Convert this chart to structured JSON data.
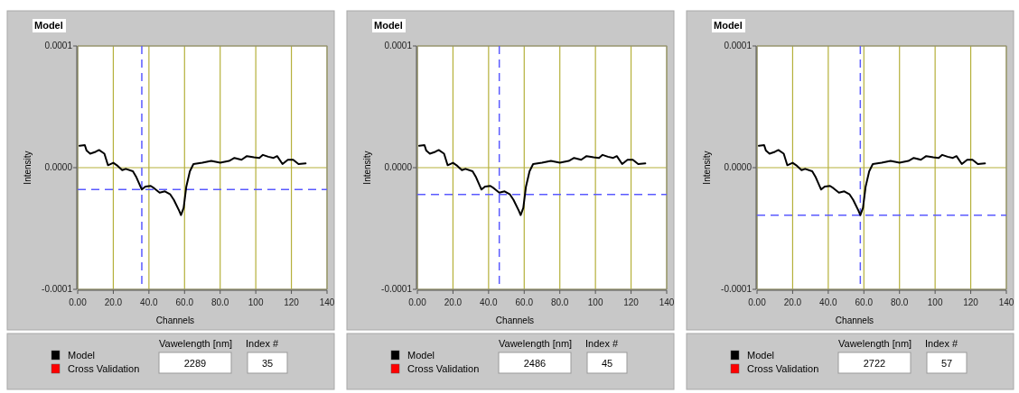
{
  "chart_data": [
    {
      "type": "line",
      "title": "Model",
      "xlabel": "Channels",
      "ylabel": "Intensity",
      "xlim": [
        0,
        140
      ],
      "ylim": [
        -0.0001,
        0.0001
      ],
      "xticks": [
        {
          "value": 0,
          "label": "0.00"
        },
        {
          "value": 20,
          "label": "20.0"
        },
        {
          "value": 40,
          "label": "40.0"
        },
        {
          "value": 60,
          "label": "60.0"
        },
        {
          "value": 80,
          "label": "80.0"
        },
        100,
        120,
        140
      ],
      "yticks": [
        {
          "value": -0.0001,
          "label": "-0.0001"
        },
        {
          "value": 0,
          "label": "0.0000"
        },
        {
          "value": 0.0001,
          "label": "0.0001"
        }
      ],
      "grid": true,
      "legend": "bottom left",
      "line_style": "solid",
      "x": [
        1,
        4,
        5,
        7,
        10,
        12,
        15,
        17,
        20,
        22,
        25,
        27,
        31,
        33,
        36,
        38,
        41,
        43,
        46,
        49,
        52,
        54,
        57,
        58,
        59.5,
        61,
        63,
        65,
        70,
        75,
        80,
        85,
        88,
        92,
        95,
        99,
        102,
        104,
        107,
        110,
        112,
        115,
        118,
        121,
        124,
        128
      ],
      "series": [
        {
          "name": "Model",
          "color": "#000000",
          "values": [
            1.8e-05,
            1.85e-05,
            1.4e-05,
            1.15e-05,
            1.3e-05,
            1.45e-05,
            1.15e-05,
            2e-06,
            4e-06,
            2e-06,
            -2e-06,
            -1e-06,
            -3e-06,
            -8e-06,
            -1.8e-05,
            -1.55e-05,
            -1.5e-05,
            -1.7e-05,
            -2.05e-05,
            -1.95e-05,
            -2.2e-05,
            -2.65e-05,
            -3.55e-05,
            -3.9e-05,
            -3.3e-05,
            -1.55e-05,
            -3e-06,
            3e-06,
            4e-06,
            5.5e-06,
            4e-06,
            5.5e-06,
            8e-06,
            6.5e-06,
            9.5e-06,
            8.5e-06,
            8e-06,
            1.05e-05,
            9e-06,
            8e-06,
            9.5e-06,
            3e-06,
            6.5e-06,
            6.5e-06,
            3e-06,
            3.5e-06
          ]
        },
        {
          "name": "Cross Validation",
          "color": "#ff0000",
          "values": [
            null,
            null,
            null,
            null,
            null,
            null,
            null,
            null,
            null,
            null,
            null,
            null,
            null,
            null,
            null,
            null,
            null,
            null,
            null,
            null,
            null,
            null,
            null,
            null,
            null,
            null,
            null,
            null,
            null,
            null,
            null,
            null,
            null,
            null,
            null,
            null,
            null,
            null,
            null,
            null,
            null,
            null,
            null,
            null,
            null,
            null
          ]
        }
      ],
      "ref_lines": [
        {
          "axis": "x",
          "value": 36,
          "color": "#5a5aff",
          "line_style": "dashed"
        },
        {
          "axis": "y",
          "value": -1.8e-05,
          "color": "#5a5aff",
          "line_style": "dashed"
        }
      ],
      "annotations": [
        "Vawelength [nm]",
        "2289",
        "Index #",
        "35"
      ]
    },
    {
      "type": "line",
      "title": "Model",
      "xlabel": "Channels",
      "ylabel": "Intensity",
      "xlim": [
        0,
        140
      ],
      "ylim": [
        -0.0001,
        0.0001
      ],
      "xticks": [
        {
          "value": 0,
          "label": "0.00"
        },
        {
          "value": 20,
          "label": "20.0"
        },
        {
          "value": 40,
          "label": "40.0"
        },
        {
          "value": 60,
          "label": "60.0"
        },
        {
          "value": 80,
          "label": "80.0"
        },
        100,
        120,
        140
      ],
      "yticks": [
        {
          "value": -0.0001,
          "label": "-0.0001"
        },
        {
          "value": 0,
          "label": "0.0000"
        },
        {
          "value": 0.0001,
          "label": "0.0001"
        }
      ],
      "grid": true,
      "legend": "bottom left",
      "line_style": "solid",
      "x": [
        1,
        4,
        5,
        7,
        10,
        12,
        15,
        17,
        20,
        22,
        25,
        27,
        31,
        33,
        36,
        38,
        41,
        43,
        46,
        49,
        52,
        54,
        57,
        58,
        59.5,
        61,
        63,
        65,
        70,
        75,
        80,
        85,
        88,
        92,
        95,
        99,
        102,
        104,
        107,
        110,
        112,
        115,
        118,
        121,
        124,
        128
      ],
      "series": [
        {
          "name": "Model",
          "color": "#000000",
          "values": [
            1.8e-05,
            1.85e-05,
            1.4e-05,
            1.15e-05,
            1.3e-05,
            1.45e-05,
            1.15e-05,
            2e-06,
            4e-06,
            2e-06,
            -2e-06,
            -1e-06,
            -3e-06,
            -8e-06,
            -1.8e-05,
            -1.55e-05,
            -1.5e-05,
            -1.7e-05,
            -2.05e-05,
            -1.95e-05,
            -2.2e-05,
            -2.65e-05,
            -3.55e-05,
            -3.9e-05,
            -3.3e-05,
            -1.55e-05,
            -3e-06,
            3e-06,
            4e-06,
            5.5e-06,
            4e-06,
            5.5e-06,
            8e-06,
            6.5e-06,
            9.5e-06,
            8.5e-06,
            8e-06,
            1.05e-05,
            9e-06,
            8e-06,
            9.5e-06,
            3e-06,
            6.5e-06,
            6.5e-06,
            3e-06,
            3.5e-06
          ]
        },
        {
          "name": "Cross Validation",
          "color": "#ff0000",
          "values": [
            null,
            null,
            null,
            null,
            null,
            null,
            null,
            null,
            null,
            null,
            null,
            null,
            null,
            null,
            null,
            null,
            null,
            null,
            null,
            null,
            null,
            null,
            null,
            null,
            null,
            null,
            null,
            null,
            null,
            null,
            null,
            null,
            null,
            null,
            null,
            null,
            null,
            null,
            null,
            null,
            null,
            null,
            null,
            null,
            null,
            null
          ]
        }
      ],
      "ref_lines": [
        {
          "axis": "x",
          "value": 46,
          "color": "#5a5aff",
          "line_style": "dashed"
        },
        {
          "axis": "y",
          "value": -2.2e-05,
          "color": "#5a5aff",
          "line_style": "dashed"
        }
      ],
      "annotations": [
        "Vawelength [nm]",
        "2486",
        "Index #",
        "45"
      ]
    },
    {
      "type": "line",
      "title": "Model",
      "xlabel": "Channels",
      "ylabel": "Intensity",
      "xlim": [
        0,
        140
      ],
      "ylim": [
        -0.0001,
        0.0001
      ],
      "xticks": [
        {
          "value": 0,
          "label": "0.00"
        },
        {
          "value": 20,
          "label": "20.0"
        },
        {
          "value": 40,
          "label": "40.0"
        },
        {
          "value": 60,
          "label": "60.0"
        },
        {
          "value": 80,
          "label": "80.0"
        },
        100,
        120,
        140
      ],
      "yticks": [
        {
          "value": -0.0001,
          "label": "-0.0001"
        },
        {
          "value": 0,
          "label": "0.0000"
        },
        {
          "value": 0.0001,
          "label": "0.0001"
        }
      ],
      "grid": true,
      "legend": "bottom left",
      "line_style": "solid",
      "x": [
        1,
        4,
        5,
        7,
        10,
        12,
        15,
        17,
        20,
        22,
        25,
        27,
        31,
        33,
        36,
        38,
        41,
        43,
        46,
        49,
        52,
        54,
        57,
        58,
        59.5,
        61,
        63,
        65,
        70,
        75,
        80,
        85,
        88,
        92,
        95,
        99,
        102,
        104,
        107,
        110,
        112,
        115,
        118,
        121,
        124,
        128
      ],
      "series": [
        {
          "name": "Model",
          "color": "#000000",
          "values": [
            1.8e-05,
            1.85e-05,
            1.4e-05,
            1.15e-05,
            1.3e-05,
            1.45e-05,
            1.15e-05,
            2e-06,
            4e-06,
            2e-06,
            -2e-06,
            -1e-06,
            -3e-06,
            -8e-06,
            -1.8e-05,
            -1.55e-05,
            -1.5e-05,
            -1.7e-05,
            -2.05e-05,
            -1.95e-05,
            -2.2e-05,
            -2.65e-05,
            -3.55e-05,
            -3.9e-05,
            -3.3e-05,
            -1.55e-05,
            -3e-06,
            3e-06,
            4e-06,
            5.5e-06,
            4e-06,
            5.5e-06,
            8e-06,
            6.5e-06,
            9.5e-06,
            8.5e-06,
            8e-06,
            1.05e-05,
            9e-06,
            8e-06,
            9.5e-06,
            3e-06,
            6.5e-06,
            6.5e-06,
            3e-06,
            3.5e-06
          ]
        },
        {
          "name": "Cross Validation",
          "color": "#ff0000",
          "values": [
            null,
            null,
            null,
            null,
            null,
            null,
            null,
            null,
            null,
            null,
            null,
            null,
            null,
            null,
            null,
            null,
            null,
            null,
            null,
            null,
            null,
            null,
            null,
            null,
            null,
            null,
            null,
            null,
            null,
            null,
            null,
            null,
            null,
            null,
            null,
            null,
            null,
            null,
            null,
            null,
            null,
            null,
            null,
            null,
            null,
            null
          ]
        }
      ],
      "ref_lines": [
        {
          "axis": "x",
          "value": 58,
          "color": "#5a5aff",
          "line_style": "dashed"
        },
        {
          "axis": "y",
          "value": -3.9e-05,
          "color": "#5a5aff",
          "line_style": "dashed"
        }
      ],
      "annotations": [
        "Vawelength [nm]",
        "2722",
        "Index #",
        "57"
      ]
    }
  ]
}
